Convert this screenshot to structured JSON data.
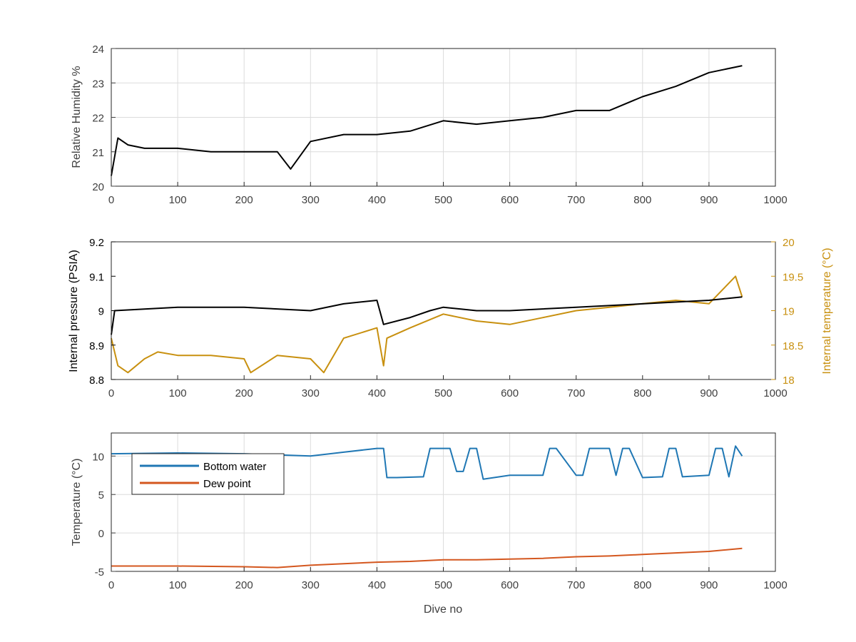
{
  "colors": {
    "background": "#ffffff",
    "axis": "#262626",
    "grid": "#dcdcdc",
    "humidity": "#000000",
    "pressure": "#000000",
    "internal_temperature": "#c8900f",
    "bottom_water": "#1f77b4",
    "dew_point": "#d4571f"
  },
  "chart_data": [
    {
      "type": "line",
      "id": "humidity",
      "xlabel": "",
      "ylabel": "Relative Humidity %",
      "xlim": [
        0,
        1000
      ],
      "ylim": [
        20,
        24
      ],
      "xticks": [
        0,
        100,
        200,
        300,
        400,
        500,
        600,
        700,
        800,
        900,
        1000
      ],
      "yticks": [
        20,
        21,
        22,
        23,
        24
      ],
      "grid": true,
      "series": [
        {
          "key": "humidity",
          "x": [
            0,
            10,
            25,
            50,
            100,
            150,
            200,
            250,
            270,
            300,
            350,
            400,
            450,
            500,
            550,
            600,
            650,
            700,
            750,
            800,
            850,
            900,
            950
          ],
          "y": [
            20.3,
            21.4,
            21.2,
            21.1,
            21.1,
            21.0,
            21.0,
            21.0,
            20.5,
            21.3,
            21.5,
            21.5,
            21.6,
            21.9,
            21.8,
            21.9,
            22.0,
            22.2,
            22.2,
            22.6,
            22.9,
            23.3,
            23.5
          ]
        }
      ]
    },
    {
      "type": "line",
      "id": "pressure_temperature",
      "xlabel": "",
      "ylabel": "Internal pressure (PSIA)",
      "ylabel_right": "Internal temperature (°C)",
      "xlim": [
        0,
        1000
      ],
      "ylim": [
        8.8,
        9.2
      ],
      "ylim_right": [
        18,
        20
      ],
      "xticks": [
        0,
        100,
        200,
        300,
        400,
        500,
        600,
        700,
        800,
        900,
        1000
      ],
      "yticks": [
        "8.8",
        "8.9",
        "9",
        "9.1",
        "9.2"
      ],
      "yticks_right": [
        "18",
        "18.5",
        "19",
        "19.5",
        "20"
      ],
      "grid": false,
      "series": [
        {
          "key": "pressure",
          "axis": "left",
          "x": [
            0,
            5,
            100,
            200,
            300,
            350,
            400,
            410,
            450,
            480,
            500,
            550,
            600,
            700,
            800,
            900,
            950
          ],
          "y": [
            8.93,
            9.0,
            9.01,
            9.01,
            9.0,
            9.02,
            9.03,
            8.96,
            8.98,
            9.0,
            9.01,
            9.0,
            9.0,
            9.01,
            9.02,
            9.03,
            9.04
          ]
        },
        {
          "key": "internal_temperature",
          "axis": "right",
          "x": [
            0,
            10,
            25,
            50,
            70,
            100,
            150,
            200,
            210,
            250,
            300,
            320,
            350,
            400,
            410,
            415,
            450,
            500,
            550,
            600,
            650,
            700,
            750,
            800,
            850,
            900,
            940,
            950
          ],
          "y": [
            18.6,
            18.2,
            18.1,
            18.3,
            18.4,
            18.35,
            18.35,
            18.3,
            18.1,
            18.35,
            18.3,
            18.1,
            18.6,
            18.75,
            18.2,
            18.6,
            18.75,
            18.95,
            18.85,
            18.8,
            18.9,
            19.0,
            19.05,
            19.1,
            19.15,
            19.1,
            19.5,
            19.2
          ]
        }
      ]
    },
    {
      "type": "line",
      "id": "temperatures",
      "xlabel": "Dive no",
      "ylabel": "Temperature (°C)",
      "xlim": [
        0,
        1000
      ],
      "ylim": [
        -5,
        13
      ],
      "xticks": [
        0,
        100,
        200,
        300,
        400,
        500,
        600,
        700,
        800,
        900,
        1000
      ],
      "yticks": [
        -5,
        0,
        5,
        10
      ],
      "grid": true,
      "legend": "upper-left",
      "series": [
        {
          "key": "bottom_water",
          "name": "Bottom water",
          "x": [
            0,
            100,
            200,
            300,
            350,
            400,
            410,
            415,
            430,
            470,
            480,
            500,
            510,
            520,
            530,
            540,
            550,
            560,
            600,
            650,
            660,
            670,
            700,
            710,
            720,
            750,
            760,
            770,
            780,
            800,
            830,
            840,
            850,
            860,
            900,
            910,
            920,
            930,
            940,
            950
          ],
          "y": [
            10.3,
            10.4,
            10.3,
            10.0,
            10.5,
            11.0,
            11.0,
            7.2,
            7.2,
            7.3,
            11.0,
            11.0,
            11.0,
            8.0,
            8.0,
            11.0,
            11.0,
            7.0,
            7.5,
            7.5,
            11.0,
            11.0,
            7.5,
            7.5,
            11.0,
            11.0,
            7.5,
            11.0,
            11.0,
            7.2,
            7.3,
            11.0,
            11.0,
            7.3,
            7.5,
            11.0,
            11.0,
            7.3,
            11.3,
            10.0
          ]
        },
        {
          "key": "dew_point",
          "name": "Dew point",
          "x": [
            0,
            100,
            200,
            250,
            300,
            350,
            400,
            450,
            500,
            550,
            600,
            650,
            700,
            750,
            800,
            850,
            900,
            950
          ],
          "y": [
            -4.3,
            -4.3,
            -4.4,
            -4.5,
            -4.2,
            -4.0,
            -3.8,
            -3.7,
            -3.5,
            -3.5,
            -3.4,
            -3.3,
            -3.1,
            -3.0,
            -2.8,
            -2.6,
            -2.4,
            -2.0
          ]
        }
      ]
    }
  ]
}
